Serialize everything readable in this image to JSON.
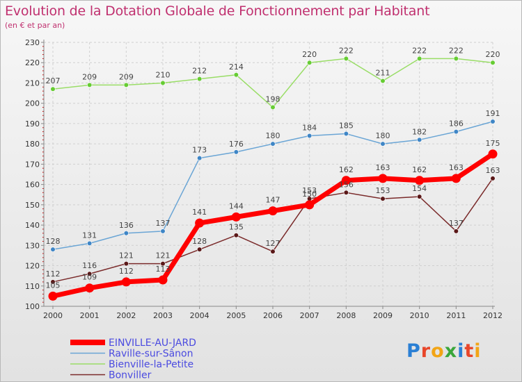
{
  "title": "Evolution de la Dotation Globale de Fonctionnement par Habitant",
  "subtitle": "(en € et par an)",
  "logo": {
    "chars": [
      "P",
      "r",
      "o",
      "x",
      "i",
      "t",
      "i"
    ],
    "colors": [
      "#2a7fd4",
      "#e8462a",
      "#f2a516",
      "#3aa63a",
      "#2a7fd4",
      "#e8462a",
      "#f2a516"
    ]
  },
  "chart_data": {
    "type": "line",
    "title": "Evolution de la Dotation Globale de Fonctionnement par Habitant",
    "subtitle": "(en € et par an)",
    "x": [
      "2000",
      "2001",
      "2002",
      "2003",
      "2004",
      "2005",
      "2006",
      "2007",
      "2008",
      "2009",
      "2010",
      "2011",
      "2012"
    ],
    "ylim": [
      100,
      230
    ],
    "yticks": [
      "100",
      "110",
      "120",
      "130",
      "140",
      "150",
      "160",
      "170",
      "180",
      "190",
      "200",
      "210",
      "220",
      "230"
    ],
    "grid": true,
    "legend": "bottom-left",
    "series": [
      {
        "name": "Bienville-la-Petite",
        "color": "#99dd66",
        "marker": "#66cc33",
        "values": [
          207,
          209,
          209,
          210,
          212,
          214,
          198,
          220,
          222,
          211,
          222,
          222,
          220
        ]
      },
      {
        "name": "Raville-sur-Sânon",
        "color": "#6aa5d5",
        "marker": "#3f86c6",
        "values": [
          128,
          131,
          136,
          137,
          173,
          176,
          180,
          184,
          185,
          180,
          182,
          186,
          191
        ]
      },
      {
        "name": "Bonviller",
        "color": "#7a2a2a",
        "marker": "#5a1818",
        "values": [
          112,
          116,
          121,
          121,
          128,
          135,
          127,
          153,
          156,
          153,
          154,
          137,
          163
        ]
      },
      {
        "name": "EINVILLE-AU-JARD",
        "color": "#ff0000",
        "marker": "#ff0000",
        "values": [
          105,
          109,
          112,
          113,
          141,
          144,
          147,
          150,
          162,
          163,
          162,
          163,
          175
        ]
      }
    ]
  }
}
